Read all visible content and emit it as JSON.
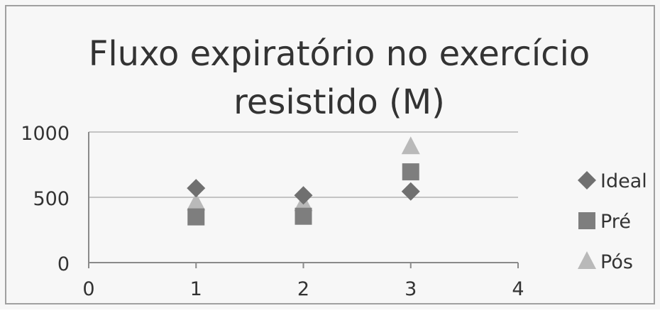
{
  "chart_data": {
    "type": "scatter",
    "title_lines": [
      "Fluxo expiratório no exercício",
      "resistido (M)"
    ],
    "xlabel": "",
    "ylabel": "",
    "xlim": [
      0,
      4
    ],
    "ylim": [
      0,
      1000
    ],
    "x_ticks": [
      "0",
      "1",
      "2",
      "3",
      "4"
    ],
    "y_ticks": [
      "0",
      "500",
      "1000"
    ],
    "grid": "horizontal",
    "legend_position": "right",
    "series": [
      {
        "name": "Ideal",
        "marker": "diamond",
        "color": "#707070",
        "x": [
          1,
          2,
          3
        ],
        "y": [
          570,
          515,
          545
        ]
      },
      {
        "name": "Pré",
        "marker": "square",
        "color": "#7e7e7e",
        "x": [
          1,
          2,
          3
        ],
        "y": [
          350,
          355,
          695
        ]
      },
      {
        "name": "Pós",
        "marker": "triangle",
        "color": "#b9b9b9",
        "x": [
          1,
          2,
          3
        ],
        "y": [
          460,
          455,
          890
        ]
      }
    ]
  }
}
